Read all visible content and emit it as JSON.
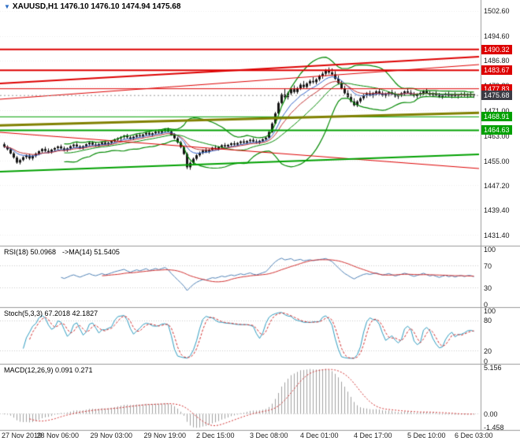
{
  "header": {
    "symbol": "XAUUSD,H1",
    "quote": "1476.10 1476.10 1474.94 1475.68",
    "marker_icon": "symbol-marker"
  },
  "panels": {
    "rsi_label": "RSI(18) 50.0968",
    "rsi_ma_label": "->MA(14) 51.5405",
    "stoch_label": "Stoch(5,3,3) 67.2018 42.1827",
    "macd_label": "MACD(12,26,9) 0.091 0.271"
  },
  "axes": {
    "price_ticks": [
      1502.6,
      1494.6,
      1486.8,
      1478.8,
      1471.0,
      1463.0,
      1455.0,
      1447.2,
      1439.4,
      1431.4
    ],
    "rsi_ticks": [
      100,
      70,
      30,
      0
    ],
    "stoch_ticks": [
      100,
      80,
      20,
      0
    ],
    "macd_ticks": [
      {
        "v": 5.156,
        "t": "5.156"
      },
      {
        "v": 0,
        "t": "0.00"
      },
      {
        "v": -1.458,
        "t": "-1.458"
      }
    ],
    "time_ticks": [
      {
        "t": "27 Nov 2019",
        "i": 0
      },
      {
        "t": "28 Nov 06:00",
        "i": 17
      },
      {
        "t": "29 Nov 03:00",
        "i": 34
      },
      {
        "t": "29 Nov 19:00",
        "i": 51
      },
      {
        "t": "2 Dec 15:00",
        "i": 67
      },
      {
        "t": "3 Dec 08:00",
        "i": 84
      },
      {
        "t": "4 Dec 01:00",
        "i": 100
      },
      {
        "t": "4 Dec 17:00",
        "i": 117
      },
      {
        "t": "5 Dec 10:00",
        "i": 134
      },
      {
        "t": "6 Dec 03:00",
        "i": 149
      }
    ]
  },
  "badges": [
    {
      "t": "1490.32",
      "v": 1490.32,
      "bg": "#dd0000"
    },
    {
      "t": "1483.67",
      "v": 1483.67,
      "bg": "#dd0000"
    },
    {
      "t": "1477.83",
      "v": 1477.83,
      "bg": "#dd0000"
    },
    {
      "t": "1475.68",
      "v": 1475.68,
      "bg": "#3b3b44"
    },
    {
      "t": "1468.91",
      "v": 1468.91,
      "bg": "#00a000"
    },
    {
      "t": "1464.63",
      "v": 1464.63,
      "bg": "#00a000"
    }
  ],
  "chart_data": {
    "type": "candlestick",
    "symbol": "XAUUSD",
    "timeframe": "H1",
    "current_price": 1475.68,
    "price_axis_range": [
      1429,
      1505
    ],
    "macd_range": [
      -1.458,
      5.156
    ],
    "colors": {
      "candle": "#151515",
      "bollinger": "#008800",
      "ma_fast": "#3060c8",
      "ma_slow": "#c03030",
      "level_red": "#dd0000",
      "level_green": "#00a000",
      "trend_olive": "#808000",
      "rsi_line": "#4f81b5",
      "rsi_ma": "#d03030",
      "stoch_main": "#2e9bbf",
      "stoch_signal": "#d03030",
      "macd_hist": "#a0a0a0",
      "macd_signal": "#d03030"
    },
    "levels": [
      {
        "p": 1490.32,
        "c": "#dd0000",
        "w": 2
      },
      {
        "p": 1483.67,
        "c": "#dd0000",
        "w": 2
      },
      {
        "p": 1477.83,
        "c": "#dd0000",
        "w": 1
      },
      {
        "p": 1468.91,
        "c": "#00a000",
        "w": 1
      },
      {
        "p": 1464.63,
        "c": "#00a000",
        "w": 2
      }
    ],
    "trendlines": [
      {
        "p1": 1479.5,
        "p2": 1488.0,
        "c": "#dd0000",
        "w": 2
      },
      {
        "p1": 1474.5,
        "p2": 1485.5,
        "c": "#dd0000",
        "w": 1
      },
      {
        "p1": 1464.0,
        "p2": 1452.5,
        "c": "#dd0000",
        "w": 1
      },
      {
        "p1": 1466.2,
        "p2": 1470.2,
        "c": "#808000",
        "w": 3
      },
      {
        "p1": 1451.5,
        "p2": 1457.0,
        "c": "#00a000",
        "w": 2
      }
    ],
    "indicator_params": {
      "rsi": 18,
      "rsi_ma": 14,
      "stoch": [
        5,
        3,
        3
      ],
      "macd": [
        12,
        26,
        9
      ],
      "bollinger": [
        20,
        2
      ]
    },
    "ohlc": [
      [
        1460.2,
        1460.8,
        1459.0,
        1459.4
      ],
      [
        1459.4,
        1459.9,
        1458.2,
        1458.6
      ],
      [
        1458.6,
        1459.1,
        1457.0,
        1457.3
      ],
      [
        1457.3,
        1457.8,
        1455.6,
        1456.0
      ],
      [
        1456.0,
        1456.5,
        1454.0,
        1454.4
      ],
      [
        1454.4,
        1455.6,
        1453.8,
        1455.2
      ],
      [
        1455.2,
        1456.4,
        1454.8,
        1456.1
      ],
      [
        1456.1,
        1457.0,
        1455.5,
        1456.6
      ],
      [
        1456.6,
        1457.2,
        1455.2,
        1455.7
      ],
      [
        1455.7,
        1456.8,
        1455.1,
        1456.5
      ],
      [
        1456.5,
        1457.6,
        1456.0,
        1457.2
      ],
      [
        1457.2,
        1458.3,
        1456.7,
        1458.0
      ],
      [
        1458.0,
        1459.0,
        1457.4,
        1458.7
      ],
      [
        1458.7,
        1459.4,
        1457.7,
        1458.1
      ],
      [
        1458.1,
        1458.9,
        1457.3,
        1457.7
      ],
      [
        1457.7,
        1458.8,
        1457.2,
        1458.5
      ],
      [
        1458.5,
        1459.3,
        1457.8,
        1459.0
      ],
      [
        1459.0,
        1459.8,
        1458.3,
        1459.5
      ],
      [
        1459.5,
        1460.1,
        1458.5,
        1458.9
      ],
      [
        1458.9,
        1459.5,
        1457.9,
        1458.3
      ],
      [
        1458.3,
        1459.2,
        1457.8,
        1458.9
      ],
      [
        1458.9,
        1459.9,
        1458.4,
        1459.6
      ],
      [
        1459.6,
        1460.4,
        1459.0,
        1460.1
      ],
      [
        1460.1,
        1460.7,
        1459.1,
        1459.5
      ],
      [
        1459.5,
        1460.0,
        1458.6,
        1459.0
      ],
      [
        1459.0,
        1459.9,
        1458.5,
        1459.6
      ],
      [
        1459.6,
        1460.5,
        1459.1,
        1460.2
      ],
      [
        1460.2,
        1461.0,
        1459.6,
        1460.7
      ],
      [
        1460.7,
        1461.2,
        1459.7,
        1460.1
      ],
      [
        1460.1,
        1460.8,
        1459.4,
        1459.8
      ],
      [
        1459.8,
        1460.6,
        1459.3,
        1460.3
      ],
      [
        1460.3,
        1461.1,
        1459.8,
        1460.8
      ],
      [
        1460.8,
        1461.4,
        1459.9,
        1460.3
      ],
      [
        1460.3,
        1461.0,
        1459.7,
        1460.7
      ],
      [
        1460.7,
        1461.5,
        1460.2,
        1461.2
      ],
      [
        1461.2,
        1462.0,
        1460.7,
        1461.7
      ],
      [
        1461.7,
        1462.4,
        1461.0,
        1462.1
      ],
      [
        1462.1,
        1462.8,
        1461.4,
        1462.5
      ],
      [
        1462.5,
        1463.2,
        1461.8,
        1462.9
      ],
      [
        1462.9,
        1463.5,
        1462.0,
        1462.4
      ],
      [
        1462.4,
        1463.0,
        1461.6,
        1462.0
      ],
      [
        1462.0,
        1462.9,
        1461.5,
        1462.6
      ],
      [
        1462.6,
        1463.4,
        1462.1,
        1463.1
      ],
      [
        1463.1,
        1463.8,
        1462.4,
        1462.8
      ],
      [
        1462.8,
        1463.6,
        1462.3,
        1463.3
      ],
      [
        1463.3,
        1464.1,
        1462.8,
        1463.8
      ],
      [
        1463.8,
        1464.4,
        1462.9,
        1463.3
      ],
      [
        1463.3,
        1464.0,
        1462.7,
        1463.7
      ],
      [
        1463.7,
        1464.5,
        1463.2,
        1464.2
      ],
      [
        1464.2,
        1464.9,
        1463.5,
        1463.9
      ],
      [
        1463.9,
        1464.7,
        1463.4,
        1464.4
      ],
      [
        1464.4,
        1465.2,
        1463.9,
        1464.9
      ],
      [
        1464.9,
        1465.5,
        1464.0,
        1464.3
      ],
      [
        1464.3,
        1464.8,
        1462.9,
        1463.2
      ],
      [
        1463.2,
        1463.7,
        1461.8,
        1462.1
      ],
      [
        1462.1,
        1462.6,
        1460.4,
        1460.8
      ],
      [
        1460.8,
        1461.3,
        1458.9,
        1459.3
      ],
      [
        1459.3,
        1459.8,
        1456.8,
        1457.1
      ],
      [
        1457.1,
        1457.6,
        1452.3,
        1452.9
      ],
      [
        1452.9,
        1454.8,
        1452.1,
        1454.3
      ],
      [
        1454.3,
        1456.0,
        1453.8,
        1455.6
      ],
      [
        1455.6,
        1457.1,
        1455.1,
        1456.7
      ],
      [
        1456.7,
        1457.9,
        1456.2,
        1457.5
      ],
      [
        1457.5,
        1458.6,
        1457.0,
        1458.2
      ],
      [
        1458.2,
        1459.0,
        1457.4,
        1457.8
      ],
      [
        1457.8,
        1458.8,
        1457.3,
        1458.5
      ],
      [
        1458.5,
        1459.4,
        1458.0,
        1459.1
      ],
      [
        1459.1,
        1459.9,
        1458.4,
        1458.8
      ],
      [
        1458.8,
        1459.6,
        1458.2,
        1459.3
      ],
      [
        1459.3,
        1460.2,
        1458.8,
        1459.9
      ],
      [
        1459.9,
        1460.6,
        1459.1,
        1459.5
      ],
      [
        1459.5,
        1460.3,
        1459.0,
        1460.0
      ],
      [
        1460.0,
        1460.8,
        1459.4,
        1460.5
      ],
      [
        1460.5,
        1461.2,
        1459.7,
        1460.1
      ],
      [
        1460.1,
        1460.9,
        1459.6,
        1460.6
      ],
      [
        1460.6,
        1461.4,
        1460.1,
        1461.1
      ],
      [
        1461.1,
        1461.8,
        1460.3,
        1460.7
      ],
      [
        1460.7,
        1461.5,
        1460.2,
        1461.2
      ],
      [
        1461.2,
        1462.0,
        1460.6,
        1461.6
      ],
      [
        1461.6,
        1462.2,
        1460.7,
        1461.1
      ],
      [
        1461.1,
        1461.8,
        1460.4,
        1460.8
      ],
      [
        1460.8,
        1461.6,
        1460.2,
        1461.3
      ],
      [
        1461.3,
        1462.1,
        1460.8,
        1461.8
      ],
      [
        1461.8,
        1462.6,
        1461.3,
        1462.3
      ],
      [
        1462.3,
        1464.5,
        1462.0,
        1464.1
      ],
      [
        1464.1,
        1467.2,
        1463.8,
        1466.8
      ],
      [
        1466.8,
        1470.5,
        1466.5,
        1470.0
      ],
      [
        1470.0,
        1473.8,
        1469.6,
        1473.3
      ],
      [
        1473.3,
        1476.5,
        1472.9,
        1476.0
      ],
      [
        1476.0,
        1477.8,
        1474.6,
        1475.2
      ],
      [
        1475.2,
        1476.9,
        1474.4,
        1476.4
      ],
      [
        1476.4,
        1478.2,
        1475.8,
        1477.7
      ],
      [
        1477.7,
        1478.9,
        1476.3,
        1476.8
      ],
      [
        1476.8,
        1478.4,
        1476.2,
        1478.0
      ],
      [
        1478.0,
        1479.6,
        1477.4,
        1479.1
      ],
      [
        1479.1,
        1480.3,
        1477.9,
        1478.4
      ],
      [
        1478.4,
        1479.9,
        1477.8,
        1479.5
      ],
      [
        1479.5,
        1480.8,
        1478.8,
        1480.3
      ],
      [
        1480.3,
        1481.5,
        1479.4,
        1479.9
      ],
      [
        1479.9,
        1481.2,
        1479.2,
        1480.8
      ],
      [
        1480.8,
        1482.3,
        1480.2,
        1481.9
      ],
      [
        1481.9,
        1483.2,
        1481.0,
        1482.6
      ],
      [
        1482.6,
        1484.1,
        1481.8,
        1483.6
      ],
      [
        1483.6,
        1484.6,
        1482.4,
        1483.0
      ],
      [
        1483.0,
        1484.3,
        1481.9,
        1482.4
      ],
      [
        1482.4,
        1483.4,
        1480.6,
        1481.0
      ],
      [
        1481.0,
        1482.0,
        1479.2,
        1479.6
      ],
      [
        1479.6,
        1480.4,
        1477.6,
        1478.0
      ],
      [
        1478.0,
        1478.8,
        1476.0,
        1476.4
      ],
      [
        1476.4,
        1477.4,
        1474.8,
        1475.2
      ],
      [
        1475.2,
        1476.2,
        1473.4,
        1473.8
      ],
      [
        1473.8,
        1474.8,
        1472.2,
        1472.6
      ],
      [
        1472.6,
        1474.2,
        1472.0,
        1473.8
      ],
      [
        1473.8,
        1475.2,
        1473.2,
        1474.8
      ],
      [
        1474.8,
        1476.2,
        1474.2,
        1475.8
      ],
      [
        1475.8,
        1476.8,
        1474.9,
        1476.3
      ],
      [
        1476.3,
        1477.2,
        1475.4,
        1475.9
      ],
      [
        1475.9,
        1476.8,
        1474.9,
        1476.4
      ],
      [
        1476.4,
        1477.4,
        1475.7,
        1477.0
      ],
      [
        1477.0,
        1477.8,
        1475.9,
        1476.3
      ],
      [
        1476.3,
        1477.1,
        1475.3,
        1475.7
      ],
      [
        1475.7,
        1476.6,
        1474.9,
        1476.2
      ],
      [
        1476.2,
        1477.0,
        1475.4,
        1476.7
      ],
      [
        1476.7,
        1477.5,
        1475.8,
        1476.1
      ],
      [
        1476.1,
        1476.9,
        1475.0,
        1475.4
      ],
      [
        1475.4,
        1476.3,
        1474.6,
        1475.9
      ],
      [
        1475.9,
        1476.8,
        1475.2,
        1476.4
      ],
      [
        1476.4,
        1477.3,
        1475.7,
        1477.0
      ],
      [
        1477.0,
        1477.9,
        1476.2,
        1476.6
      ],
      [
        1476.6,
        1477.4,
        1475.6,
        1476.0
      ],
      [
        1476.0,
        1476.8,
        1475.1,
        1475.5
      ],
      [
        1475.5,
        1476.4,
        1474.8,
        1476.0
      ],
      [
        1476.0,
        1476.9,
        1475.4,
        1476.5
      ],
      [
        1476.5,
        1477.4,
        1475.8,
        1477.1
      ],
      [
        1477.1,
        1477.9,
        1476.2,
        1476.5
      ],
      [
        1476.5,
        1477.2,
        1475.5,
        1475.9
      ],
      [
        1475.9,
        1476.7,
        1475.2,
        1476.3
      ],
      [
        1476.3,
        1477.0,
        1475.5,
        1475.8
      ],
      [
        1475.8,
        1476.5,
        1474.9,
        1475.3
      ],
      [
        1475.3,
        1476.1,
        1474.6,
        1475.8
      ],
      [
        1475.8,
        1476.6,
        1475.1,
        1476.2
      ],
      [
        1476.2,
        1476.9,
        1475.3,
        1475.6
      ],
      [
        1475.6,
        1476.3,
        1474.8,
        1476.0
      ],
      [
        1476.0,
        1476.7,
        1475.2,
        1475.5
      ],
      [
        1475.5,
        1476.2,
        1474.7,
        1475.9
      ],
      [
        1475.9,
        1476.6,
        1475.1,
        1476.1
      ],
      [
        1476.1,
        1476.8,
        1475.3,
        1475.7
      ],
      [
        1475.7,
        1476.4,
        1474.9,
        1476.1
      ],
      [
        1476.1,
        1476.8,
        1475.2,
        1476.1
      ],
      [
        1476.1,
        1476.1,
        1474.94,
        1475.68
      ]
    ]
  }
}
